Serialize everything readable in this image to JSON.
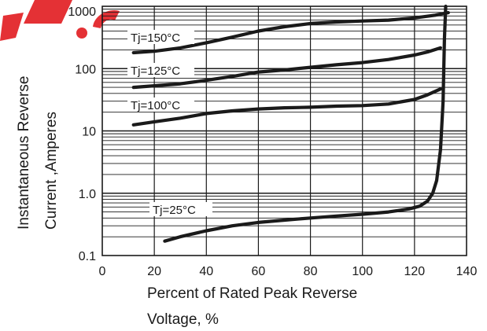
{
  "chart_data": {
    "type": "line",
    "title": "",
    "xlabel_lines": [
      "Percent of Rated Peak Reverse",
      "Voltage, %"
    ],
    "ylabel_lines": [
      "Instantaneous Reverse",
      "Current ,Amperes"
    ],
    "xlim": [
      0,
      140
    ],
    "ylim": [
      0.1,
      1000
    ],
    "yscale": "log",
    "grid": true,
    "x_ticks": [
      0,
      20,
      40,
      60,
      80,
      100,
      120,
      140
    ],
    "x_tick_labels": [
      "0",
      "20",
      "40",
      "60",
      "80",
      "100",
      "120",
      "140"
    ],
    "y_ticks": [
      0.1,
      1,
      10,
      100,
      1000
    ],
    "y_tick_labels": [
      "0.1",
      "1.0",
      "10",
      "100",
      "1000"
    ],
    "series": [
      {
        "name": "Tj=150°C",
        "x": [
          12,
          20,
          30,
          40,
          50,
          60,
          70,
          80,
          90,
          100,
          110,
          120,
          128,
          133
        ],
        "y": [
          180,
          190,
          215,
          260,
          320,
          400,
          470,
          530,
          560,
          580,
          600,
          650,
          720,
          790
        ]
      },
      {
        "name": "Tj=125°C",
        "x": [
          12,
          20,
          30,
          40,
          50,
          60,
          70,
          80,
          90,
          100,
          110,
          120,
          125,
          130
        ],
        "y": [
          50,
          53,
          57,
          65,
          75,
          88,
          95,
          105,
          115,
          125,
          140,
          165,
          185,
          215
        ]
      },
      {
        "name": "Tj=100°C",
        "x": [
          12,
          20,
          30,
          40,
          50,
          60,
          70,
          80,
          90,
          100,
          110,
          120,
          125,
          130
        ],
        "y": [
          12.5,
          14,
          16,
          19,
          21,
          22.5,
          23.5,
          24,
          25,
          25.5,
          27,
          32,
          38,
          47
        ]
      },
      {
        "name": "Tj=25°C",
        "x": [
          24,
          30,
          40,
          50,
          60,
          70,
          80,
          90,
          100,
          110,
          118,
          122,
          125,
          127,
          128.5,
          130,
          131,
          131.5,
          132
        ],
        "y": [
          0.17,
          0.2,
          0.25,
          0.3,
          0.34,
          0.37,
          0.4,
          0.43,
          0.46,
          0.5,
          0.56,
          0.62,
          0.75,
          1.0,
          1.6,
          5,
          30,
          300,
          1000
        ]
      }
    ]
  }
}
